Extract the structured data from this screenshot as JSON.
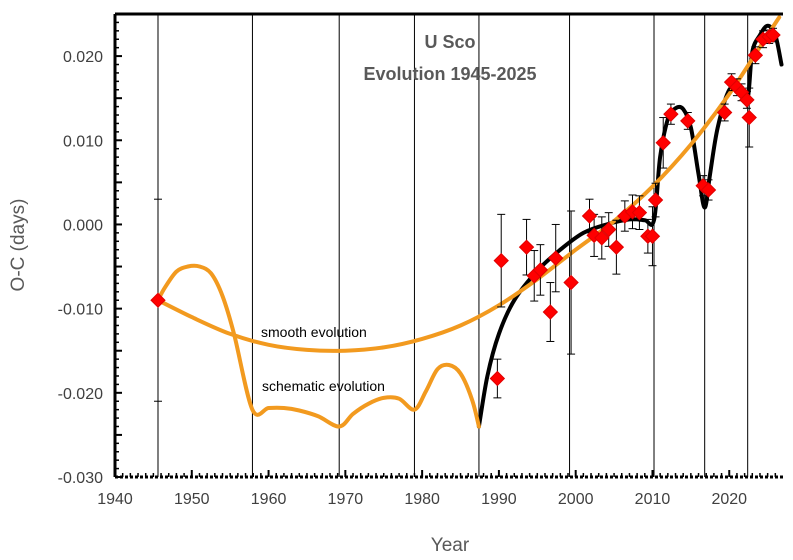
{
  "chart_data": {
    "type": "scatter",
    "title": [
      "U Sco",
      "Evolution 1945-2025"
    ],
    "xlabel": "Year",
    "ylabel": "O-C (days)",
    "xlim": [
      1940,
      2027
    ],
    "ylim": [
      -0.03,
      0.025
    ],
    "x_ticks": [
      "1940",
      "1950",
      "1960",
      "1970",
      "1980",
      "1990",
      "2000",
      "2010",
      "2020"
    ],
    "y_ticks": [
      "0.020",
      "0.010",
      "0.000",
      "-0.010",
      "-0.020",
      "-0.030"
    ],
    "eruption_lines": [
      1945.6,
      1957.9,
      1969.2,
      1979.0,
      1987.4,
      1999.2,
      2010.2,
      2016.8,
      2022.4
    ],
    "observations": [
      {
        "x": 1945.6,
        "y": -0.009,
        "err": 0.012
      },
      {
        "x": 1989.8,
        "y": -0.0183,
        "err": 0.0023
      },
      {
        "x": 1990.3,
        "y": -0.0043,
        "err": 0.0055
      },
      {
        "x": 1993.6,
        "y": -0.0027,
        "err": 0.0033
      },
      {
        "x": 1994.6,
        "y": -0.0061,
        "err": 0.003
      },
      {
        "x": 1995.4,
        "y": -0.0054,
        "err": 0.003
      },
      {
        "x": 1996.7,
        "y": -0.0104,
        "err": 0.0035
      },
      {
        "x": 1997.4,
        "y": -0.004,
        "err": 0.004
      },
      {
        "x": 1999.4,
        "y": -0.0069,
        "err": 0.0085
      },
      {
        "x": 2001.8,
        "y": 0.001,
        "err": 0.002
      },
      {
        "x": 2002.4,
        "y": -0.0013,
        "err": 0.0025
      },
      {
        "x": 2003.4,
        "y": -0.0016,
        "err": 0.0025
      },
      {
        "x": 2004.3,
        "y": -0.0006,
        "err": 0.002
      },
      {
        "x": 2005.3,
        "y": -0.0027,
        "err": 0.0032
      },
      {
        "x": 2006.4,
        "y": 0.001,
        "err": 0.0018
      },
      {
        "x": 2007.4,
        "y": 0.0015,
        "err": 0.002
      },
      {
        "x": 2008.3,
        "y": 0.0014,
        "err": 0.002
      },
      {
        "x": 2009.4,
        "y": -0.0014,
        "err": 0.002
      },
      {
        "x": 2010.0,
        "y": -0.0014,
        "err": 0.0035
      },
      {
        "x": 2010.4,
        "y": 0.0029,
        "err": 0.002
      },
      {
        "x": 2011.4,
        "y": 0.0097,
        "err": 0.003
      },
      {
        "x": 2012.4,
        "y": 0.0131,
        "err": 0.0012
      },
      {
        "x": 2014.6,
        "y": 0.0123,
        "err": 0.001
      },
      {
        "x": 2016.6,
        "y": 0.0046,
        "err": 0.0012
      },
      {
        "x": 2017.3,
        "y": 0.0041,
        "err": 0.0012
      },
      {
        "x": 2019.4,
        "y": 0.0133,
        "err": 0.001
      },
      {
        "x": 2020.3,
        "y": 0.0169,
        "err": 0.001
      },
      {
        "x": 2021.0,
        "y": 0.0163,
        "err": 0.001
      },
      {
        "x": 2021.6,
        "y": 0.0157,
        "err": 0.001
      },
      {
        "x": 2022.3,
        "y": 0.0148,
        "err": 0.001
      },
      {
        "x": 2022.6,
        "y": 0.0127,
        "err": 0.0035
      },
      {
        "x": 2023.4,
        "y": 0.0201,
        "err": 0.001
      },
      {
        "x": 2024.4,
        "y": 0.022,
        "err": 0.001
      },
      {
        "x": 2025.2,
        "y": 0.0223,
        "err": 0.0008
      },
      {
        "x": 2025.7,
        "y": 0.0225,
        "err": 0.0008
      }
    ],
    "smooth_evolution": {
      "label": "smooth evolution",
      "color": "#f29a1f",
      "points": [
        [
          1945.6,
          -0.009
        ],
        [
          1950,
          -0.011
        ],
        [
          1955,
          -0.013
        ],
        [
          1960,
          -0.0143
        ],
        [
          1965,
          -0.0149
        ],
        [
          1970,
          -0.015
        ],
        [
          1975,
          -0.0146
        ],
        [
          1980,
          -0.0136
        ],
        [
          1985,
          -0.012
        ],
        [
          1990,
          -0.0096
        ],
        [
          1995,
          -0.0065
        ],
        [
          2000,
          -0.003
        ],
        [
          2005,
          0.0004
        ],
        [
          2010,
          0.0045
        ],
        [
          2015,
          0.0095
        ],
        [
          2020,
          0.0155
        ],
        [
          2025,
          0.0225
        ],
        [
          2026.5,
          0.0246
        ]
      ]
    },
    "schematic_evolution": {
      "label": "schematic evolution",
      "color": "#f29a1f",
      "points": [
        [
          1945.6,
          -0.009
        ],
        [
          1946.5,
          -0.0075
        ],
        [
          1948,
          -0.0056
        ],
        [
          1949.5,
          -0.005
        ],
        [
          1951,
          -0.005
        ],
        [
          1952.5,
          -0.0058
        ],
        [
          1954,
          -0.0085
        ],
        [
          1955.5,
          -0.013
        ],
        [
          1957.9,
          -0.022
        ],
        [
          1960,
          -0.0218
        ],
        [
          1962,
          -0.0218
        ],
        [
          1964,
          -0.0221
        ],
        [
          1966.5,
          -0.0228
        ],
        [
          1969.2,
          -0.024
        ],
        [
          1971,
          -0.0225
        ],
        [
          1973,
          -0.0213
        ],
        [
          1975,
          -0.0206
        ],
        [
          1977,
          -0.0207
        ],
        [
          1979,
          -0.022
        ],
        [
          1980.5,
          -0.0198
        ],
        [
          1982,
          -0.0172
        ],
        [
          1983.5,
          -0.0167
        ],
        [
          1985,
          -0.0177
        ],
        [
          1986.5,
          -0.0208
        ],
        [
          1987.4,
          -0.024
        ]
      ]
    },
    "model_fit": {
      "color": "#000000",
      "points": [
        [
          1987.4,
          -0.024
        ],
        [
          1988.5,
          -0.018
        ],
        [
          1990,
          -0.013
        ],
        [
          1992,
          -0.009
        ],
        [
          1995,
          -0.0055
        ],
        [
          1998,
          -0.003
        ],
        [
          2001,
          -0.001
        ],
        [
          2004,
          0.0
        ],
        [
          2007,
          0.0006
        ],
        [
          2009,
          0.0005
        ],
        [
          2010.2,
          0.0005
        ],
        [
          2011,
          0.008
        ],
        [
          2012,
          0.0125
        ],
        [
          2013,
          0.0138
        ],
        [
          2014,
          0.0137
        ],
        [
          2015,
          0.0115
        ],
        [
          2016,
          0.006
        ],
        [
          2016.8,
          0.002
        ],
        [
          2017.5,
          0.006
        ],
        [
          2018.5,
          0.0115
        ],
        [
          2020,
          0.016
        ],
        [
          2021.5,
          0.0163
        ],
        [
          2022.4,
          0.015
        ],
        [
          2023,
          0.0205
        ],
        [
          2024,
          0.0225
        ],
        [
          2025,
          0.0236
        ],
        [
          2026,
          0.0225
        ],
        [
          2026.8,
          0.019
        ]
      ]
    },
    "annotations": [
      "smooth evolution",
      "schematic evolution"
    ],
    "grid": false,
    "legend": "none"
  }
}
